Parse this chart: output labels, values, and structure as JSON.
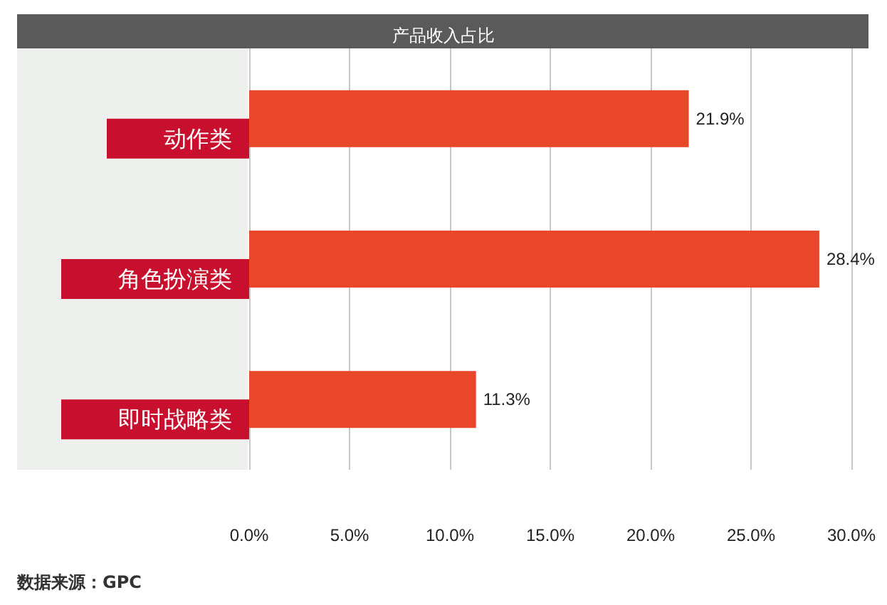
{
  "chart_data": {
    "type": "bar",
    "orientation": "horizontal",
    "title": "产品收入占比",
    "categories": [
      "动作类",
      "角色扮演类",
      "即时战略类"
    ],
    "values": [
      21.9,
      28.4,
      11.3
    ],
    "value_labels": [
      "21.9%",
      "28.4%",
      "11.3%"
    ],
    "color": "#e8472a",
    "xlim": [
      0,
      30
    ],
    "xticks": [
      {
        "value": 0,
        "label": "0.0%"
      },
      {
        "value": 5,
        "label": "5.0%"
      },
      {
        "value": 10,
        "label": "10.0%"
      },
      {
        "value": 15,
        "label": "15.0%"
      },
      {
        "value": 20,
        "label": "20.0%"
      },
      {
        "value": 25,
        "label": "25.0%"
      },
      {
        "value": 30,
        "label": "30.0%"
      }
    ],
    "grid": "x",
    "annotations": [
      "数据来源：GPC"
    ]
  }
}
